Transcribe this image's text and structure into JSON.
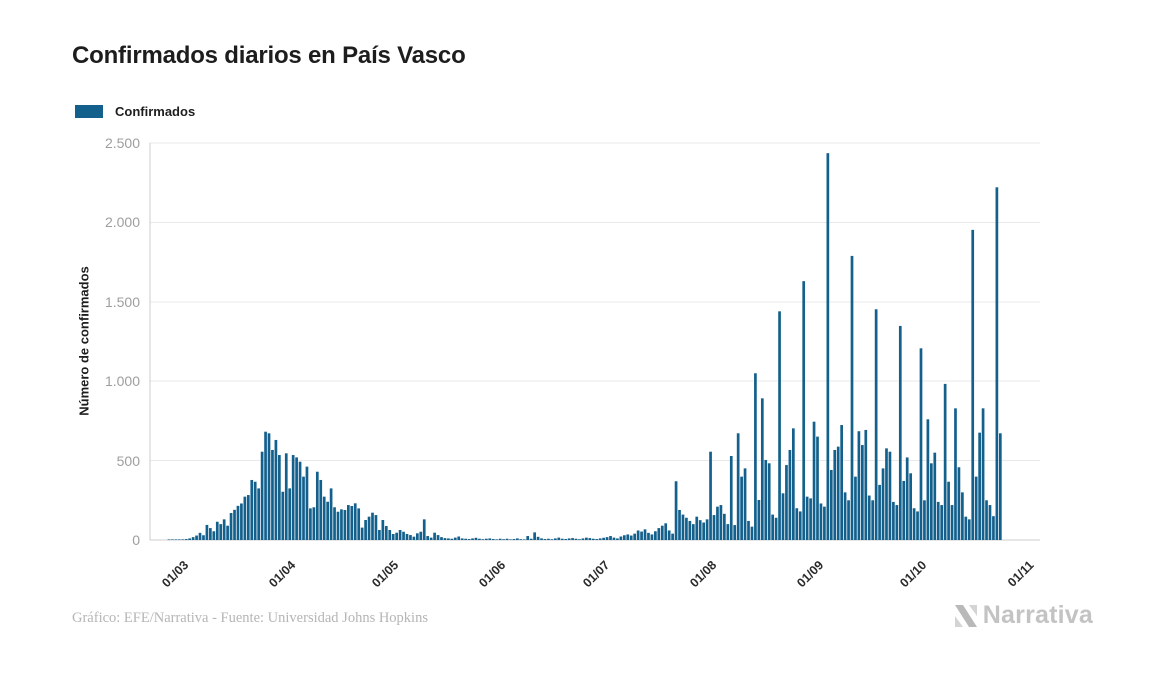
{
  "header": {
    "title": "Confirmados diarios en País Vasco"
  },
  "legend": {
    "label": "Confirmados"
  },
  "footer": {
    "credit": "Gráfico: EFE/Narrativa - Fuente: Universidad Johns Hopkins",
    "brand": "Narrativa"
  },
  "chart_data": {
    "type": "bar",
    "title": "Confirmados diarios en País Vasco",
    "xlabel": "",
    "ylabel": "Número de confirmados",
    "ylim": [
      0,
      2500
    ],
    "yticks": [
      0,
      500,
      1000,
      1500,
      2000,
      2500
    ],
    "ytick_labels": [
      "0",
      "500",
      "1.000",
      "1.500",
      "2.000",
      "2.500"
    ],
    "xtick_labels": [
      "01/03",
      "01/04",
      "01/05",
      "01/06",
      "01/07",
      "01/08",
      "01/09",
      "01/10",
      "01/11"
    ],
    "xtick_day_offsets": [
      10,
      41,
      71,
      102,
      132,
      163,
      194,
      224,
      255
    ],
    "axis_total_days": 258,
    "grid": true,
    "legend_position": "top-left",
    "bar_color": "#14608c",
    "gridline_color": "#e9e9e9",
    "axis_line_color": "#cccccc",
    "series": [
      {
        "name": "Confirmados",
        "values": [
          0,
          0,
          0,
          0,
          0,
          1,
          1,
          2,
          3,
          4,
          6,
          10,
          18,
          28,
          45,
          30,
          95,
          75,
          55,
          115,
          100,
          130,
          90,
          170,
          190,
          215,
          230,
          273,
          283,
          378,
          367,
          325,
          556,
          682,
          672,
          567,
          630,
          535,
          304,
          546,
          325,
          535,
          520,
          493,
          399,
          462,
          199,
          206,
          430,
          378,
          273,
          241,
          325,
          206,
          178,
          193,
          189,
          220,
          214,
          231,
          199,
          78,
          126,
          147,
          172,
          157,
          63,
          126,
          88,
          63,
          38,
          46,
          63,
          52,
          38,
          31,
          21,
          42,
          52,
          130,
          25,
          15,
          46,
          31,
          18,
          12,
          10,
          8,
          15,
          22,
          10,
          8,
          6,
          10,
          14,
          8,
          5,
          8,
          10,
          6,
          4,
          8,
          5,
          8,
          4,
          6,
          10,
          5,
          3,
          25,
          8,
          48,
          20,
          10,
          6,
          8,
          5,
          10,
          15,
          8,
          6,
          10,
          12,
          8,
          5,
          10,
          15,
          12,
          8,
          6,
          10,
          14,
          18,
          25,
          15,
          10,
          22,
          30,
          35,
          28,
          40,
          60,
          53,
          67,
          45,
          35,
          55,
          75,
          90,
          105,
          60,
          40,
          370,
          189,
          160,
          140,
          120,
          100,
          147,
          125,
          110,
          130,
          556,
          157,
          210,
          220,
          165,
          100,
          529,
          94,
          672,
          399,
          451,
          120,
          84,
          1050,
          252,
          892,
          504,
          483,
          160,
          140,
          1440,
          294,
          472,
          567,
          703,
          200,
          180,
          1630,
          273,
          262,
          745,
          651,
          230,
          210,
          2436,
          441,
          567,
          588,
          724,
          300,
          250,
          1789,
          399,
          685,
          598,
          693,
          280,
          250,
          1453,
          347,
          451,
          577,
          556,
          240,
          220,
          1348,
          372,
          520,
          420,
          200,
          180,
          1207,
          250,
          760,
          483,
          550,
          240,
          220,
          983,
          367,
          220,
          829,
          458,
          300,
          147,
          130,
          1953,
          399,
          676,
          829,
          250,
          220,
          150,
          2221,
          672
        ]
      }
    ]
  }
}
